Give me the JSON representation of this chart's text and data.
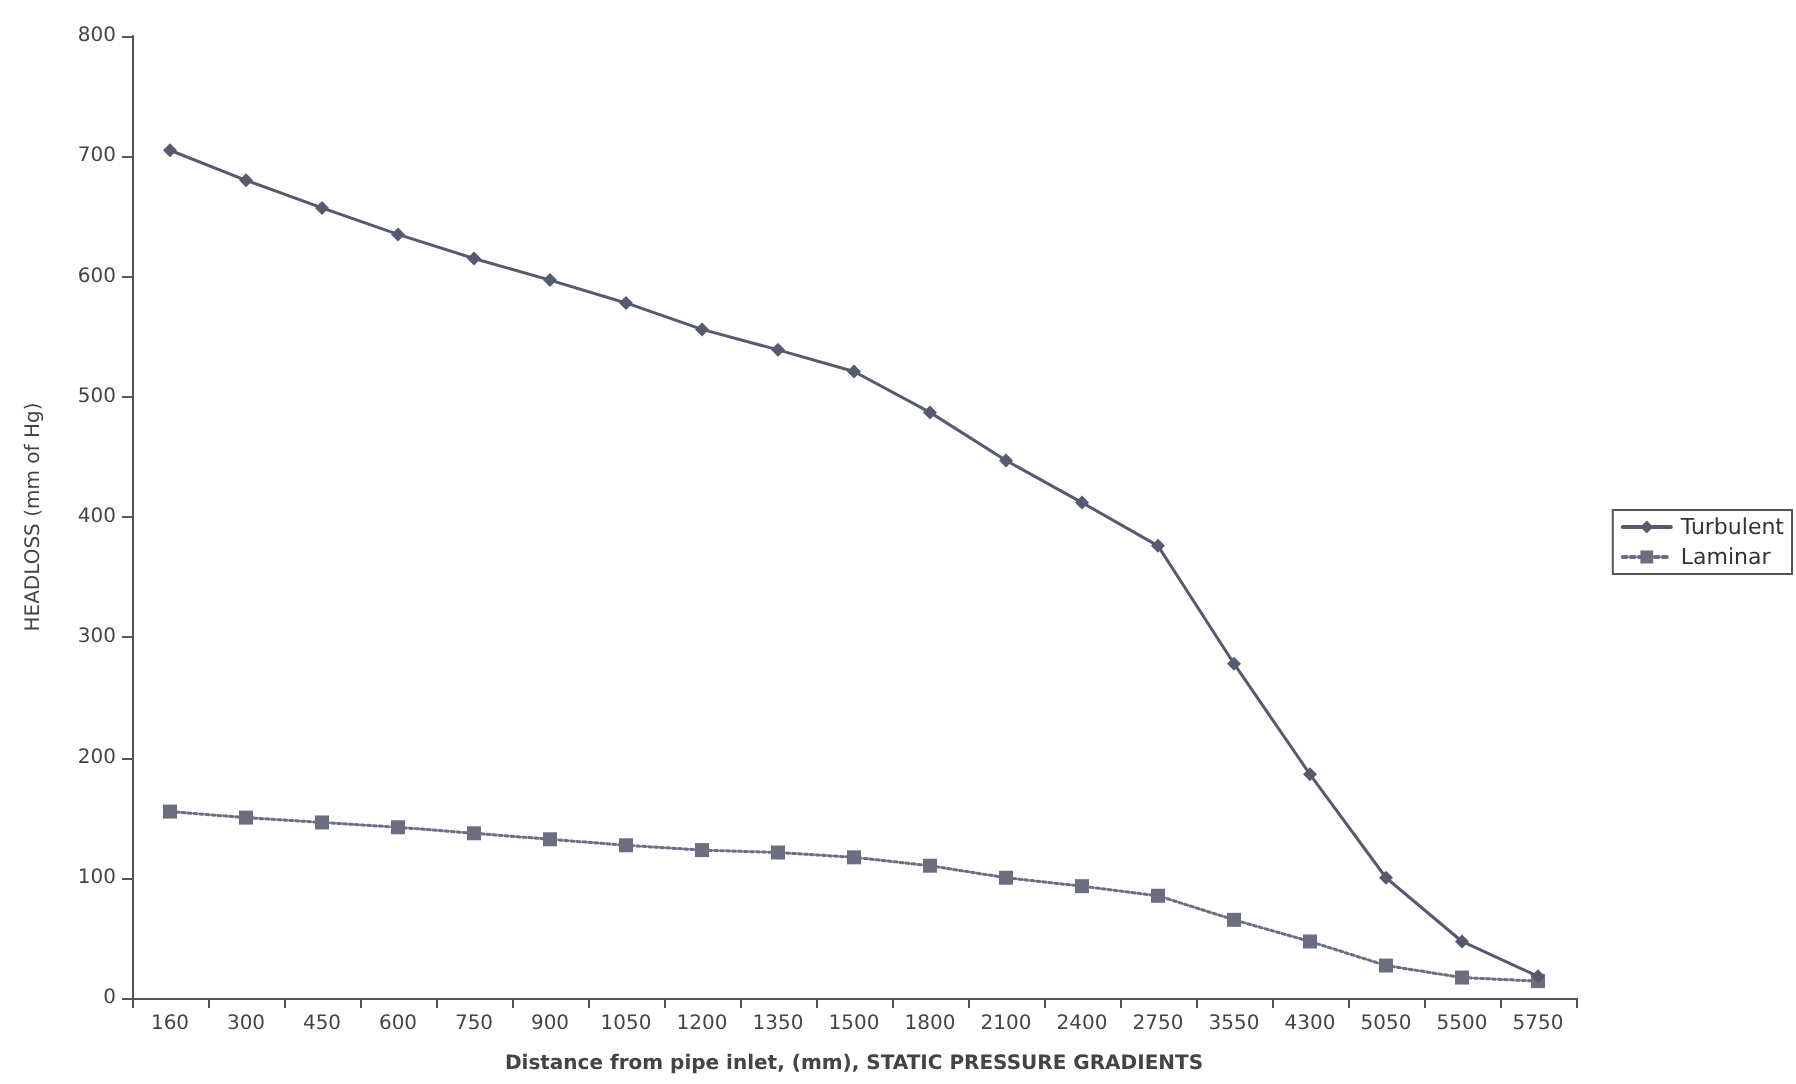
{
  "chart_data": {
    "type": "line",
    "xlabel": "Distance from pipe inlet, (mm), STATIC PRESSURE GRADIENTS",
    "ylabel": "HEADLOSS (mm of Hg)",
    "categories": [
      "160",
      "300",
      "450",
      "600",
      "750",
      "900",
      "1050",
      "1200",
      "1350",
      "1500",
      "1800",
      "2100",
      "2400",
      "2750",
      "3550",
      "4300",
      "5050",
      "5500",
      "5750"
    ],
    "series": [
      {
        "name": "Turbulent",
        "color": "#555a6e",
        "marker": "diamond",
        "line_style": "solid",
        "values": [
          705,
          680,
          657,
          635,
          615,
          597,
          578,
          556,
          539,
          521,
          487,
          447,
          412,
          376,
          278,
          186,
          100,
          47,
          18
        ]
      },
      {
        "name": "Laminar",
        "color": "#6a6e80",
        "marker": "square",
        "line_style": "dotted",
        "values": [
          155,
          150,
          146,
          142,
          137,
          132,
          127,
          123,
          121,
          117,
          110,
          100,
          93,
          85,
          65,
          47,
          27,
          17,
          14
        ]
      }
    ],
    "ylim": [
      0,
      800
    ],
    "yticks": [
      0,
      100,
      200,
      300,
      400,
      500,
      600,
      700,
      800
    ],
    "grid": false,
    "legend": "right"
  }
}
